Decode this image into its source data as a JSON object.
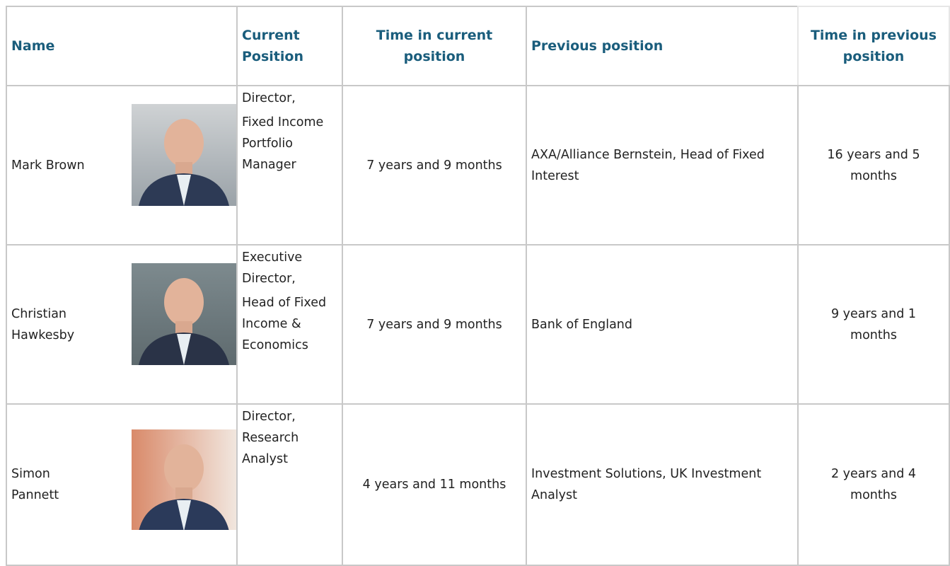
{
  "table": {
    "header": [
      "Name",
      "Current Position",
      "Time in current position",
      "Previous position",
      "Time in previous position"
    ],
    "rows": [
      {
        "name": "Mark Brown",
        "position": [
          "Director,",
          "Fixed Income Portfolio Manager"
        ],
        "time_current": "7 years and 9 months",
        "previous": "AXA/Alliance Bernstein, Head of Fixed Interest",
        "time_previous": "16 years and 5 months"
      },
      {
        "name": "Christian Hawkesby",
        "position": [
          "Executive Director,",
          "Head of Fixed Income & Economics"
        ],
        "time_current": "7 years and 9 months",
        "previous": "Bank of England",
        "time_previous": "9 years and 1 months"
      },
      {
        "name": "Simon Pannett",
        "position": [
          "Director, Research Analyst"
        ],
        "time_current": "4 years and 11 months",
        "previous": "Investment Solutions, UK Investment Analyst",
        "time_previous": "2 years and 4 months"
      }
    ]
  }
}
